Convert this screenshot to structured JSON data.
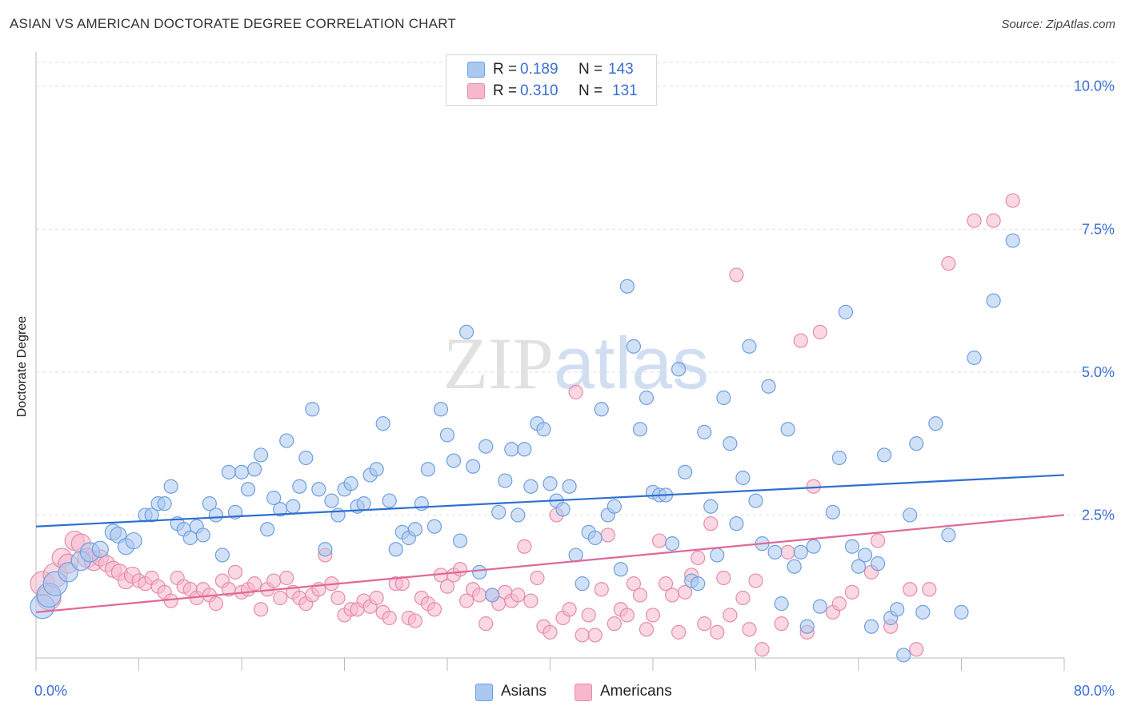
{
  "title": "ASIAN VS AMERICAN DOCTORATE DEGREE CORRELATION CHART",
  "source": "Source: ZipAtlas.com",
  "watermark": "ZIPatlas",
  "colors": {
    "asians_fill": "#aac9f0",
    "asians_stroke": "#6f9fe0",
    "asians_line": "#2f6fd0",
    "americans_fill": "#f6b8cc",
    "americans_stroke": "#e88aa9",
    "americans_line": "#e0689a",
    "tick_label": "#3a6fd4",
    "grid": "#dddddd"
  },
  "legend": {
    "rows": [
      {
        "r_label": "R =",
        "r_value": "0.189",
        "n_label": "N =",
        "n_value": "143"
      },
      {
        "r_label": "R =",
        "r_value": "0.310",
        "n_label": "N =",
        "n_value": "131"
      }
    ]
  },
  "chart_data": {
    "type": "scatter",
    "title": "ASIAN VS AMERICAN DOCTORATE DEGREE CORRELATION CHART",
    "xlabel": "",
    "ylabel": "Doctorate Degree",
    "xlim": [
      0,
      80
    ],
    "ylim": [
      0,
      10.5
    ],
    "x_tick_labels": [
      "0.0%",
      "80.0%"
    ],
    "y_ticks": [
      2.5,
      5.0,
      7.5,
      10.0
    ],
    "y_tick_labels": [
      "2.5%",
      "5.0%",
      "7.5%",
      "10.0%"
    ],
    "grid": "horizontal dashed",
    "legend_position": "top-center",
    "series": [
      {
        "name": "Asians",
        "r": 0.189,
        "n": 143,
        "trend": {
          "x": [
            0,
            80
          ],
          "y": [
            2.3,
            3.2
          ]
        },
        "points": [
          [
            0.5,
            0.9
          ],
          [
            1.0,
            1.1
          ],
          [
            1.5,
            1.3
          ],
          [
            2.5,
            1.5
          ],
          [
            3.5,
            1.7
          ],
          [
            4.2,
            1.85
          ],
          [
            5.0,
            1.9
          ],
          [
            6.0,
            2.2
          ],
          [
            6.4,
            2.15
          ],
          [
            7.0,
            1.95
          ],
          [
            7.6,
            2.05
          ],
          [
            8.5,
            2.5
          ],
          [
            9.0,
            2.5
          ],
          [
            9.5,
            2.7
          ],
          [
            10.0,
            2.7
          ],
          [
            10.5,
            3.0
          ],
          [
            11.0,
            2.35
          ],
          [
            11.5,
            2.25
          ],
          [
            12.0,
            2.1
          ],
          [
            12.5,
            2.3
          ],
          [
            13.0,
            2.15
          ],
          [
            13.5,
            2.7
          ],
          [
            14.0,
            2.5
          ],
          [
            14.5,
            1.8
          ],
          [
            15.0,
            3.25
          ],
          [
            15.5,
            2.55
          ],
          [
            16.0,
            3.25
          ],
          [
            16.5,
            2.95
          ],
          [
            17.0,
            3.3
          ],
          [
            17.5,
            3.55
          ],
          [
            18.0,
            2.25
          ],
          [
            18.5,
            2.8
          ],
          [
            19.0,
            2.6
          ],
          [
            19.5,
            3.8
          ],
          [
            20.0,
            2.65
          ],
          [
            20.5,
            3.0
          ],
          [
            21.0,
            3.5
          ],
          [
            21.5,
            4.35
          ],
          [
            22.0,
            2.95
          ],
          [
            22.5,
            1.9
          ],
          [
            23.0,
            2.75
          ],
          [
            23.5,
            2.5
          ],
          [
            24.0,
            2.95
          ],
          [
            24.5,
            3.05
          ],
          [
            25.0,
            2.65
          ],
          [
            25.5,
            2.7
          ],
          [
            26.0,
            3.2
          ],
          [
            26.5,
            3.3
          ],
          [
            27.0,
            4.1
          ],
          [
            27.5,
            2.75
          ],
          [
            28.0,
            1.9
          ],
          [
            28.5,
            2.2
          ],
          [
            29.0,
            2.1
          ],
          [
            29.5,
            2.25
          ],
          [
            30.0,
            2.7
          ],
          [
            30.5,
            3.3
          ],
          [
            31.0,
            2.3
          ],
          [
            31.5,
            4.35
          ],
          [
            32.0,
            3.9
          ],
          [
            32.5,
            3.45
          ],
          [
            33.0,
            2.05
          ],
          [
            33.5,
            5.7
          ],
          [
            34.0,
            3.35
          ],
          [
            34.5,
            1.5
          ],
          [
            35.0,
            3.7
          ],
          [
            35.5,
            1.1
          ],
          [
            36.0,
            2.55
          ],
          [
            36.5,
            3.1
          ],
          [
            37.0,
            3.65
          ],
          [
            37.5,
            2.5
          ],
          [
            38.0,
            3.65
          ],
          [
            38.5,
            3.0
          ],
          [
            39.0,
            4.1
          ],
          [
            39.5,
            4.0
          ],
          [
            40.0,
            3.05
          ],
          [
            40.5,
            2.75
          ],
          [
            41.0,
            2.6
          ],
          [
            41.5,
            3.0
          ],
          [
            42.0,
            1.8
          ],
          [
            42.5,
            1.3
          ],
          [
            43.0,
            2.2
          ],
          [
            43.5,
            2.1
          ],
          [
            44.0,
            4.35
          ],
          [
            44.5,
            2.5
          ],
          [
            45.0,
            2.65
          ],
          [
            45.5,
            1.55
          ],
          [
            46.0,
            6.5
          ],
          [
            46.5,
            5.45
          ],
          [
            47.0,
            4.0
          ],
          [
            47.5,
            4.55
          ],
          [
            48.0,
            2.9
          ],
          [
            48.5,
            2.85
          ],
          [
            49.0,
            2.85
          ],
          [
            49.5,
            2.0
          ],
          [
            50.0,
            5.05
          ],
          [
            50.5,
            3.25
          ],
          [
            51.0,
            1.35
          ],
          [
            51.5,
            1.3
          ],
          [
            52.0,
            3.95
          ],
          [
            52.5,
            2.65
          ],
          [
            53.0,
            1.8
          ],
          [
            53.5,
            4.55
          ],
          [
            54.0,
            3.75
          ],
          [
            54.5,
            2.35
          ],
          [
            55.0,
            3.15
          ],
          [
            55.5,
            5.45
          ],
          [
            56.0,
            2.75
          ],
          [
            56.5,
            2.0
          ],
          [
            57.0,
            4.75
          ],
          [
            57.5,
            1.85
          ],
          [
            58.0,
            0.95
          ],
          [
            58.5,
            4.0
          ],
          [
            59.0,
            1.6
          ],
          [
            59.5,
            1.85
          ],
          [
            60.0,
            0.55
          ],
          [
            60.5,
            1.95
          ],
          [
            61.0,
            0.9
          ],
          [
            62.0,
            2.55
          ],
          [
            62.5,
            3.5
          ],
          [
            63.0,
            6.05
          ],
          [
            63.5,
            1.95
          ],
          [
            64.0,
            1.6
          ],
          [
            64.5,
            1.8
          ],
          [
            65.0,
            0.55
          ],
          [
            65.5,
            1.65
          ],
          [
            66.0,
            3.55
          ],
          [
            66.5,
            0.7
          ],
          [
            67.0,
            0.85
          ],
          [
            67.5,
            0.05
          ],
          [
            68.0,
            2.5
          ],
          [
            68.5,
            3.75
          ],
          [
            69.0,
            0.8
          ],
          [
            70.0,
            4.1
          ],
          [
            71.0,
            2.15
          ],
          [
            72.0,
            0.8
          ],
          [
            73.0,
            5.25
          ],
          [
            74.5,
            6.25
          ],
          [
            76.0,
            7.3
          ]
        ]
      },
      {
        "name": "Americans",
        "r": 0.31,
        "n": 131,
        "trend": {
          "x": [
            0,
            80
          ],
          "y": [
            0.8,
            2.5
          ]
        },
        "points": [
          [
            0.5,
            1.3
          ],
          [
            1.0,
            1.05
          ],
          [
            1.5,
            1.45
          ],
          [
            2.0,
            1.75
          ],
          [
            2.5,
            1.65
          ],
          [
            3.0,
            2.05
          ],
          [
            3.5,
            2.0
          ],
          [
            4.0,
            1.75
          ],
          [
            4.5,
            1.7
          ],
          [
            5.0,
            1.75
          ],
          [
            5.5,
            1.65
          ],
          [
            6.0,
            1.55
          ],
          [
            6.5,
            1.5
          ],
          [
            7.0,
            1.35
          ],
          [
            7.5,
            1.45
          ],
          [
            8.0,
            1.35
          ],
          [
            8.5,
            1.3
          ],
          [
            9.0,
            1.4
          ],
          [
            9.5,
            1.25
          ],
          [
            10.0,
            1.15
          ],
          [
            10.5,
            1.0
          ],
          [
            11.0,
            1.4
          ],
          [
            11.5,
            1.25
          ],
          [
            12.0,
            1.2
          ],
          [
            12.5,
            1.05
          ],
          [
            13.0,
            1.2
          ],
          [
            13.5,
            1.1
          ],
          [
            14.0,
            0.95
          ],
          [
            14.5,
            1.35
          ],
          [
            15.0,
            1.2
          ],
          [
            15.5,
            1.5
          ],
          [
            16.0,
            1.15
          ],
          [
            16.5,
            1.2
          ],
          [
            17.0,
            1.3
          ],
          [
            17.5,
            0.85
          ],
          [
            18.0,
            1.2
          ],
          [
            18.5,
            1.35
          ],
          [
            19.0,
            1.05
          ],
          [
            19.5,
            1.4
          ],
          [
            20.0,
            1.15
          ],
          [
            20.5,
            1.05
          ],
          [
            21.0,
            0.95
          ],
          [
            21.5,
            1.1
          ],
          [
            22.0,
            1.2
          ],
          [
            22.5,
            1.8
          ],
          [
            23.0,
            1.3
          ],
          [
            23.5,
            1.05
          ],
          [
            24.0,
            0.75
          ],
          [
            24.5,
            0.85
          ],
          [
            25.0,
            0.85
          ],
          [
            25.5,
            1.0
          ],
          [
            26.0,
            0.9
          ],
          [
            26.5,
            1.05
          ],
          [
            27.0,
            0.8
          ],
          [
            27.5,
            0.7
          ],
          [
            28.0,
            1.3
          ],
          [
            28.5,
            1.3
          ],
          [
            29.0,
            0.7
          ],
          [
            29.5,
            0.65
          ],
          [
            30.0,
            1.05
          ],
          [
            30.5,
            0.95
          ],
          [
            31.0,
            0.85
          ],
          [
            31.5,
            1.45
          ],
          [
            32.0,
            1.25
          ],
          [
            32.5,
            1.45
          ],
          [
            33.0,
            1.55
          ],
          [
            33.5,
            1.0
          ],
          [
            34.0,
            1.2
          ],
          [
            34.5,
            1.1
          ],
          [
            35.0,
            0.6
          ],
          [
            35.5,
            1.1
          ],
          [
            36.0,
            0.95
          ],
          [
            36.5,
            1.15
          ],
          [
            37.0,
            1.0
          ],
          [
            37.5,
            1.1
          ],
          [
            38.0,
            1.95
          ],
          [
            38.5,
            1.0
          ],
          [
            39.0,
            1.4
          ],
          [
            39.5,
            0.55
          ],
          [
            40.0,
            0.45
          ],
          [
            40.5,
            2.5
          ],
          [
            41.0,
            0.7
          ],
          [
            41.5,
            0.85
          ],
          [
            42.0,
            4.65
          ],
          [
            42.5,
            0.4
          ],
          [
            43.0,
            0.75
          ],
          [
            43.5,
            0.4
          ],
          [
            44.0,
            1.2
          ],
          [
            44.5,
            2.15
          ],
          [
            45.0,
            0.6
          ],
          [
            45.5,
            0.85
          ],
          [
            46.0,
            0.75
          ],
          [
            46.5,
            1.3
          ],
          [
            47.0,
            1.1
          ],
          [
            47.5,
            0.5
          ],
          [
            48.0,
            0.75
          ],
          [
            48.5,
            2.05
          ],
          [
            49.0,
            1.3
          ],
          [
            49.5,
            1.1
          ],
          [
            50.0,
            0.45
          ],
          [
            50.5,
            1.15
          ],
          [
            51.0,
            1.45
          ],
          [
            51.5,
            1.75
          ],
          [
            52.0,
            0.6
          ],
          [
            52.5,
            2.35
          ],
          [
            53.0,
            0.45
          ],
          [
            53.5,
            1.4
          ],
          [
            54.0,
            0.75
          ],
          [
            54.5,
            6.7
          ],
          [
            55.0,
            1.05
          ],
          [
            55.5,
            0.5
          ],
          [
            56.0,
            1.35
          ],
          [
            56.5,
            0.15
          ],
          [
            58.0,
            0.6
          ],
          [
            58.5,
            1.85
          ],
          [
            59.5,
            5.55
          ],
          [
            60.0,
            0.45
          ],
          [
            60.5,
            3.0
          ],
          [
            61.0,
            5.7
          ],
          [
            62.0,
            0.8
          ],
          [
            62.5,
            0.95
          ],
          [
            63.5,
            1.15
          ],
          [
            65.0,
            1.5
          ],
          [
            65.5,
            2.05
          ],
          [
            66.5,
            0.55
          ],
          [
            68.0,
            1.2
          ],
          [
            68.5,
            0.15
          ],
          [
            69.5,
            1.2
          ],
          [
            71.0,
            6.9
          ],
          [
            73.0,
            7.65
          ],
          [
            74.5,
            7.65
          ],
          [
            76.0,
            8.0
          ]
        ]
      }
    ]
  }
}
